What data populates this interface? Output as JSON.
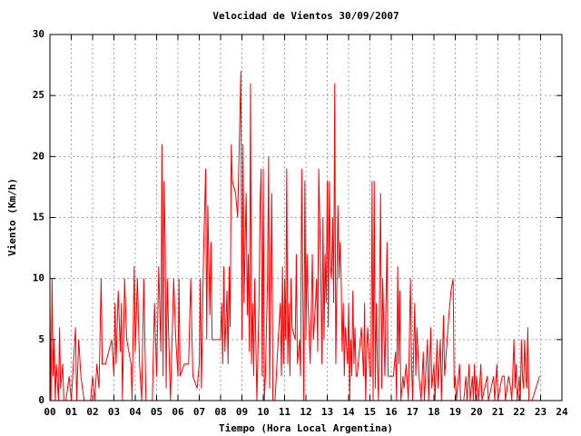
{
  "chart_data": {
    "type": "line",
    "title": "Velocidad de Vientos 30/09/2007",
    "x_label": "Tiempo (Hora Local Argentina)",
    "y_label": "Viento (Km/h)",
    "xlim": [
      0,
      24
    ],
    "ylim": [
      0,
      30
    ],
    "xticks": [
      {
        "value": 0,
        "label": "00"
      },
      {
        "value": 1,
        "label": "01"
      },
      {
        "value": 2,
        "label": "02"
      },
      {
        "value": 3,
        "label": "03"
      },
      {
        "value": 4,
        "label": "04"
      },
      {
        "value": 5,
        "label": "05"
      },
      {
        "value": 6,
        "label": "06"
      },
      {
        "value": 7,
        "label": "07"
      },
      {
        "value": 8,
        "label": "08"
      },
      {
        "value": 9,
        "label": "09"
      },
      {
        "value": 10,
        "label": "10"
      },
      {
        "value": 11,
        "label": "11"
      },
      {
        "value": 12,
        "label": "12"
      },
      {
        "value": 13,
        "label": "13"
      },
      {
        "value": 14,
        "label": "14"
      },
      {
        "value": 15,
        "label": "15"
      },
      {
        "value": 16,
        "label": "16"
      },
      {
        "value": 17,
        "label": "17"
      },
      {
        "value": 18,
        "label": "18"
      },
      {
        "value": 19,
        "label": "19"
      },
      {
        "value": 20,
        "label": "20"
      },
      {
        "value": 21,
        "label": "21"
      },
      {
        "value": 22,
        "label": "22"
      },
      {
        "value": 23,
        "label": "23"
      },
      {
        "value": 24,
        "label": "24"
      }
    ],
    "yticks": [
      0,
      5,
      10,
      15,
      20,
      25,
      30
    ],
    "grid": true,
    "color": "#ff0000",
    "x": [
      0,
      0.05,
      0.1,
      0.15,
      0.2,
      0.25,
      0.3,
      0.4,
      0.45,
      0.5,
      0.6,
      0.65,
      0.75,
      0.9,
      1,
      1.1,
      1.2,
      1.25,
      1.35,
      1.45,
      1.6,
      1.9,
      2,
      2.1,
      2.2,
      2.3,
      2.4,
      2.45,
      2.6,
      2.9,
      3,
      3.05,
      3.1,
      3.2,
      3.3,
      3.35,
      3.4,
      3.5,
      3.6,
      3.7,
      3.8,
      3.85,
      3.95,
      4,
      4.1,
      4.2,
      4.3,
      4.4,
      4.5,
      4.8,
      4.9,
      5,
      5.1,
      5.2,
      5.25,
      5.3,
      5.35,
      5.4,
      5.45,
      5.5,
      5.6,
      5.65,
      5.8,
      5.9,
      6,
      6.05,
      6.1,
      6.3,
      6.5,
      6.6,
      6.7,
      6.9,
      7,
      7.05,
      7.1,
      7.2,
      7.3,
      7.35,
      7.4,
      7.5,
      7.55,
      7.6,
      7.7,
      8,
      8.05,
      8.1,
      8.15,
      8.2,
      8.3,
      8.35,
      8.4,
      8.45,
      8.5,
      8.55,
      8.7,
      8.8,
      8.9,
      8.95,
      9,
      9.05,
      9.1,
      9.15,
      9.2,
      9.25,
      9.3,
      9.35,
      9.4,
      9.45,
      9.5,
      9.55,
      9.6,
      9.7,
      9.8,
      9.85,
      9.9,
      9.95,
      10,
      10.05,
      10.1,
      10.2,
      10.25,
      10.3,
      10.4,
      10.45,
      10.55,
      10.7,
      10.8,
      10.85,
      10.9,
      10.95,
      11,
      11.05,
      11.1,
      11.15,
      11.2,
      11.25,
      11.3,
      11.35,
      11.5,
      11.55,
      11.6,
      11.7,
      11.75,
      11.8,
      11.9,
      11.95,
      12,
      12.05,
      12.1,
      12.2,
      12.3,
      12.35,
      12.45,
      12.5,
      12.55,
      12.6,
      12.7,
      12.75,
      12.8,
      12.85,
      12.9,
      12.95,
      13,
      13.05,
      13.1,
      13.15,
      13.2,
      13.25,
      13.3,
      13.35,
      13.4,
      13.5,
      13.55,
      13.6,
      13.65,
      13.7,
      13.75,
      13.8,
      13.85,
      13.95,
      14,
      14.05,
      14.1,
      14.15,
      14.2,
      14.25,
      14.3,
      14.35,
      14.4,
      14.6,
      14.7,
      14.75,
      14.8,
      14.85,
      14.9,
      15,
      15.05,
      15.1,
      15.15,
      15.2,
      15.25,
      15.3,
      15.35,
      15.4,
      15.5,
      15.55,
      15.6,
      15.7,
      15.8,
      15.85,
      15.9,
      15.95,
      16,
      16.05,
      16.1,
      16.2,
      16.25,
      16.3,
      16.35,
      16.4,
      16.45,
      16.55,
      16.6,
      16.7,
      16.8,
      16.9,
      16.95,
      17,
      17.1,
      17.15,
      17.2,
      17.3,
      17.4,
      17.5,
      17.55,
      17.7,
      17.75,
      17.85,
      17.9,
      18,
      18.05,
      18.15,
      18.2,
      18.3,
      18.35,
      18.45,
      18.5,
      18.7,
      18.75,
      18.8,
      18.9,
      18.95,
      19,
      19.05,
      19.2,
      19.25,
      19.4,
      19.5,
      19.55,
      19.65,
      19.7,
      19.8,
      19.85,
      19.9,
      19.95,
      20,
      20.1,
      20.2,
      20.25,
      20.5,
      20.55,
      20.8,
      20.85,
      20.95,
      21,
      21.2,
      21.3,
      21.35,
      21.5,
      21.6,
      21.65,
      21.75,
      21.8,
      21.85,
      21.9,
      22,
      22.05,
      22.1,
      22.15,
      22.2,
      22.25,
      22.3,
      22.35,
      22.4,
      22.45,
      22.6,
      22.95
    ],
    "values": [
      8,
      0,
      10,
      2,
      5,
      0,
      3,
      0,
      6,
      1,
      3,
      0,
      0,
      2,
      0,
      3,
      6,
      0,
      5,
      2,
      0,
      0,
      2,
      0,
      3,
      1,
      10,
      3,
      3,
      5,
      2,
      8,
      3,
      9,
      4,
      8,
      0,
      10,
      5,
      4,
      3,
      0,
      11,
      4,
      10,
      3,
      0,
      10,
      0,
      0,
      8,
      2,
      11,
      4,
      21,
      2,
      18,
      13,
      1,
      10,
      3,
      0,
      10,
      5,
      2,
      10,
      2,
      3,
      3,
      10,
      2,
      1,
      3,
      10,
      1,
      12,
      19,
      5,
      16,
      7,
      13,
      5,
      5,
      5,
      8,
      3,
      11,
      4,
      9,
      3,
      11,
      6,
      21,
      18,
      17,
      15,
      23,
      27,
      5,
      21,
      8,
      13,
      17,
      7,
      12,
      4,
      26,
      3,
      8,
      2,
      10,
      0,
      8,
      16,
      19,
      2,
      19,
      0,
      2,
      10,
      20,
      1,
      17,
      0,
      0,
      5,
      8,
      2,
      11,
      3,
      10,
      5,
      19,
      3,
      8,
      2,
      10,
      6,
      5,
      12,
      3,
      5,
      2,
      19,
      0,
      18,
      5,
      12,
      8,
      3,
      12,
      5,
      8,
      10,
      4,
      19,
      10,
      3,
      15,
      5,
      12,
      8,
      18,
      6,
      18,
      11,
      10,
      15,
      8,
      26,
      3,
      16,
      10,
      13,
      10,
      4,
      8,
      2,
      6,
      3,
      8,
      0,
      5,
      2,
      9,
      3,
      6,
      2,
      2,
      6,
      2,
      8,
      0,
      4,
      6,
      2,
      2,
      18,
      0,
      18,
      1,
      8,
      3,
      0,
      17,
      1,
      10,
      2,
      13,
      2,
      2,
      2,
      2,
      2,
      2,
      4,
      0,
      11,
      3,
      9,
      0,
      2,
      1,
      3,
      0,
      10,
      3,
      0,
      8,
      2,
      6,
      2,
      0,
      4,
      0,
      5,
      0,
      6,
      1,
      3,
      0,
      5,
      1,
      5,
      0,
      7,
      2,
      7,
      8,
      9,
      10,
      1,
      2,
      0,
      3,
      0,
      0,
      2,
      0,
      3,
      0,
      2,
      0,
      3,
      0,
      2,
      0,
      3,
      0,
      2,
      0,
      2,
      0,
      3,
      0,
      2,
      2,
      0,
      2,
      1,
      0,
      5,
      1,
      3,
      0,
      2,
      0,
      5,
      2,
      1,
      5,
      2,
      1,
      6,
      0,
      0,
      2
    ]
  }
}
